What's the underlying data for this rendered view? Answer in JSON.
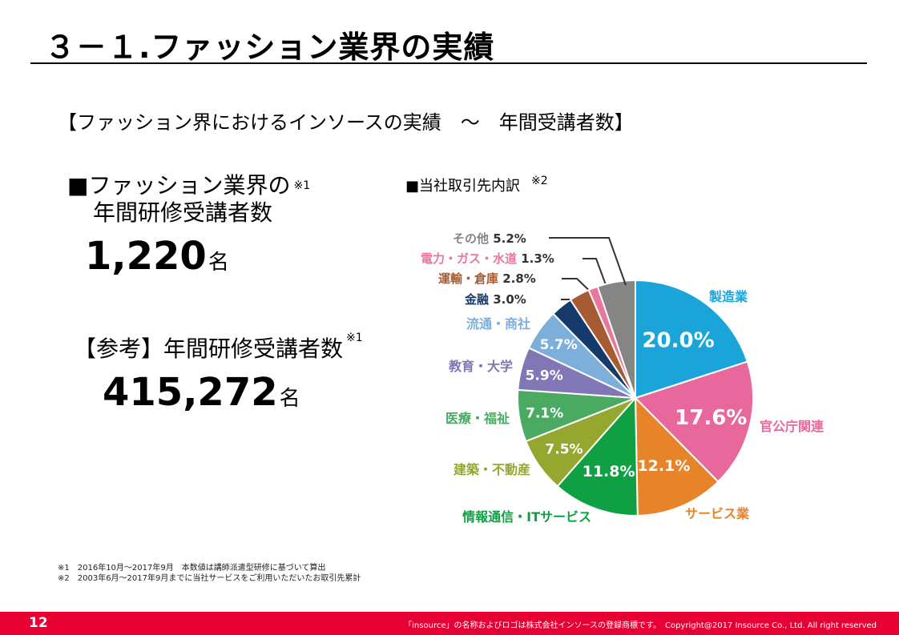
{
  "page": {
    "title": "３－１.ファッション業界の実績",
    "subtitle": "【ファッション界におけるインソースの実績　～　年間受講者数】"
  },
  "stats": {
    "heading_line1": "■ファッション業界の",
    "heading_line2": "年間研修受講者数",
    "note_mark1": "※1",
    "value": "1,220",
    "unit": "名",
    "ref_heading": "【参考】年間研修受講者数",
    "ref_note_mark": "※1",
    "ref_value": "415,272",
    "ref_unit": "名"
  },
  "chart_heading": {
    "label": "■当社取引先内訳",
    "note_mark": "※2"
  },
  "chart_data": {
    "type": "pie",
    "title": "■当社取引先内訳",
    "start": "top, clockwise",
    "slices": [
      {
        "label": "製造業",
        "value": 20.0,
        "display": "20.0%",
        "color": "#1aa4da"
      },
      {
        "label": "官公庁関連",
        "value": 17.6,
        "display": "17.6%",
        "color": "#e8679d"
      },
      {
        "label": "サービス業",
        "value": 12.1,
        "display": "12.1%",
        "color": "#e7842a"
      },
      {
        "label": "情報通信・ITサービス",
        "value": 11.8,
        "display": "11.8%",
        "color": "#0fa043"
      },
      {
        "label": "建築・不動産",
        "value": 7.5,
        "display": "7.5%",
        "color": "#96a72f"
      },
      {
        "label": "医療・福祉",
        "value": 7.1,
        "display": "7.1%",
        "color": "#4aaa62"
      },
      {
        "label": "教育・大学",
        "value": 5.9,
        "display": "5.9%",
        "color": "#8277b6"
      },
      {
        "label": "流通・商社",
        "value": 5.7,
        "display": "5.7%",
        "color": "#7eafda"
      },
      {
        "label": "金融",
        "value": 3.0,
        "display": "3.0%",
        "color": "#163a6b"
      },
      {
        "label": "運輸・倉庫",
        "value": 2.8,
        "display": "2.8%",
        "color": "#a75b32"
      },
      {
        "label": "電力・ガス・水道",
        "value": 1.3,
        "display": "1.3%",
        "color": "#e7789c"
      },
      {
        "label": "その他",
        "value": 5.2,
        "display": "5.2%",
        "color": "#858583"
      }
    ]
  },
  "footnotes": [
    "※1　2016年10月～2017年9月　本数値は講師派遣型研修に基づいて算出",
    "※2　2003年6月～2017年9月までに当社サービスをご利用いただいたお取引先累計"
  ],
  "footer": {
    "page_number": "12",
    "copyright": "「insource」の名称およびロゴは株式会社インソースの登録商標です。　Copyright@2017 Insource Co., Ltd. All right reserved",
    "bar_color": "#e60033"
  }
}
